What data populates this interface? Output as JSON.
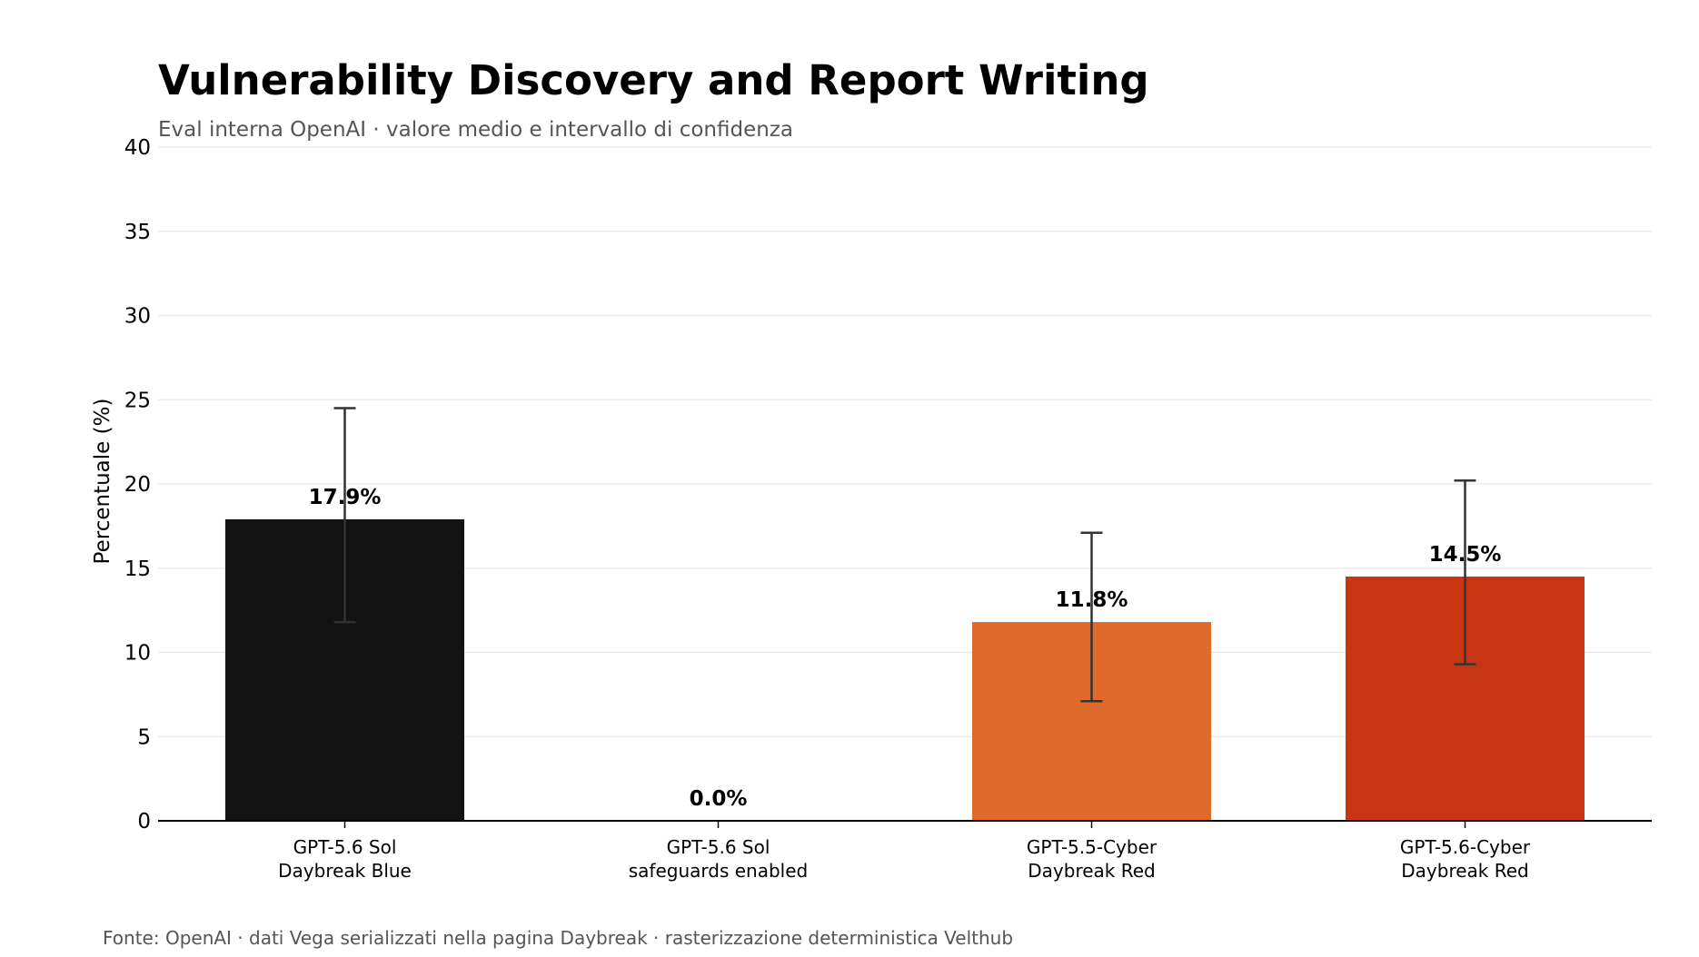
{
  "chart_data": {
    "type": "bar",
    "title": "Vulnerability Discovery and Report Writing",
    "subtitle": "Eval interna OpenAI · valore medio e intervallo di confidenza",
    "ylabel": "Percentuale (%)",
    "xlabel": "",
    "ylim": [
      0,
      40
    ],
    "yticks": [
      0,
      5,
      10,
      15,
      20,
      25,
      30,
      35,
      40
    ],
    "grid": true,
    "categories": [
      [
        "GPT-5.6 Sol",
        "Daybreak Blue"
      ],
      [
        "GPT-5.6 Sol",
        "safeguards enabled"
      ],
      [
        "GPT-5.5-Cyber",
        "Daybreak Red"
      ],
      [
        "GPT-5.6-Cyber",
        "Daybreak Red"
      ]
    ],
    "values": [
      17.9,
      0.0,
      11.8,
      14.5
    ],
    "value_labels": [
      "17.9%",
      "0.0%",
      "11.8%",
      "14.5%"
    ],
    "error_low": [
      11.8,
      null,
      7.1,
      9.3
    ],
    "error_high": [
      24.5,
      null,
      17.1,
      20.2
    ],
    "colors": [
      "#121212",
      "#121212",
      "#e06a2c",
      "#c93412"
    ],
    "footer": "Fonte: OpenAI · dati Vega serializzati nella pagina Daybreak · rasterizzazione deterministica Velthub"
  }
}
